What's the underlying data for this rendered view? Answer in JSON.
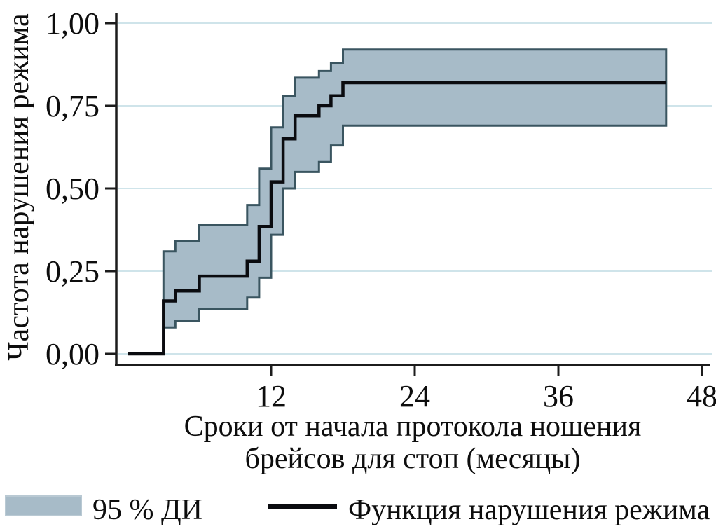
{
  "figure": {
    "ylabel": "Частота нарушения режима",
    "xlabel_line1": "Сроки от начала протокола ношения",
    "xlabel_line2": "брейсов для стоп (месяцы)",
    "legend": {
      "ci_label": "95 % ДИ",
      "fn_label": "Функция нарушения режима"
    }
  },
  "colors": {
    "band_fill": "#a7bbc8",
    "band_edge": "#3a5560",
    "estimate_line": "#0a0b0f",
    "gridline": "#cfe4ea",
    "axis": "#1c1c1c",
    "swatch_border": "#b9c9d3"
  },
  "chart_data": {
    "type": "line",
    "subtype": "step-after cumulative incidence (failure function) with 95% confidence band",
    "title": "",
    "xlabel": "Сроки от начала протокола ношения брейсов для стоп (месяцы)",
    "ylabel": "Частота нарушения режима",
    "xlim": [
      0,
      48
    ],
    "ylim": [
      0.0,
      1.0
    ],
    "grid": "horizontal",
    "legend_position": "bottom",
    "x_ticks": [
      {
        "value": 12,
        "label": "12"
      },
      {
        "value": 24,
        "label": "24"
      },
      {
        "value": 36,
        "label": "36"
      },
      {
        "value": 48,
        "label": "48"
      }
    ],
    "y_ticks": [
      {
        "value": 0.0,
        "label": "0,00"
      },
      {
        "value": 0.25,
        "label": "0,25"
      },
      {
        "value": 0.5,
        "label": "0,50"
      },
      {
        "value": 0.75,
        "label": "0,75"
      },
      {
        "value": 1.0,
        "label": "1,00"
      }
    ],
    "x_end": 45,
    "series": [
      {
        "name": "Функция нарушения режима",
        "role": "estimate",
        "step": "after",
        "x": [
          0,
          3,
          4,
          6,
          10,
          11,
          12,
          13,
          14,
          16,
          17,
          18
        ],
        "y": [
          0.0,
          0.16,
          0.19,
          0.235,
          0.28,
          0.385,
          0.52,
          0.65,
          0.72,
          0.75,
          0.78,
          0.82
        ]
      },
      {
        "name": "95 % ДИ — нижняя граница",
        "role": "ci_lower",
        "step": "after",
        "x": [
          3,
          4,
          6,
          10,
          11,
          12,
          13,
          14,
          16,
          17,
          18
        ],
        "y": [
          0.08,
          0.1,
          0.135,
          0.17,
          0.23,
          0.36,
          0.5,
          0.55,
          0.58,
          0.63,
          0.69
        ]
      },
      {
        "name": "95 % ДИ — верхняя граница",
        "role": "ci_upper",
        "step": "after",
        "x": [
          3,
          4,
          6,
          10,
          11,
          12,
          13,
          14,
          16,
          17,
          18
        ],
        "y": [
          0.31,
          0.34,
          0.39,
          0.45,
          0.56,
          0.685,
          0.78,
          0.835,
          0.855,
          0.88,
          0.92
        ]
      }
    ]
  }
}
